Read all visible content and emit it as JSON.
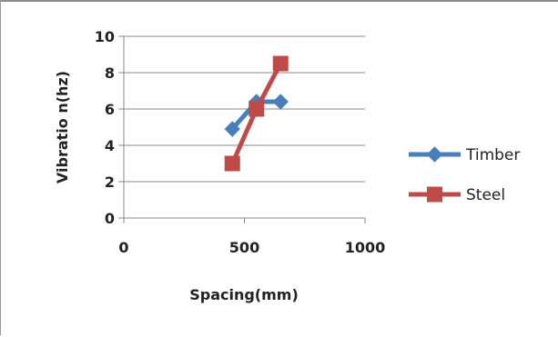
{
  "chart_data": {
    "type": "line",
    "xlabel": "Spacing(mm)",
    "ylabel": "Vibratio n(hz)",
    "xlim": [
      0,
      1000
    ],
    "ylim": [
      0,
      10
    ],
    "xticks": [
      0,
      500,
      1000
    ],
    "yticks": [
      0,
      2,
      4,
      6,
      8,
      10
    ],
    "grid": "horizontal",
    "legend_position": "right",
    "series": [
      {
        "name": "Timber",
        "color": "#4a7ebb",
        "marker": "diamond",
        "points": [
          {
            "x": 450,
            "y": 4.9
          },
          {
            "x": 550,
            "y": 6.4
          },
          {
            "x": 650,
            "y": 6.4
          }
        ]
      },
      {
        "name": "Steel",
        "color": "#be4b48",
        "marker": "square",
        "points": [
          {
            "x": 450,
            "y": 3.0
          },
          {
            "x": 550,
            "y": 6.0
          },
          {
            "x": 650,
            "y": 8.5
          }
        ]
      }
    ]
  }
}
